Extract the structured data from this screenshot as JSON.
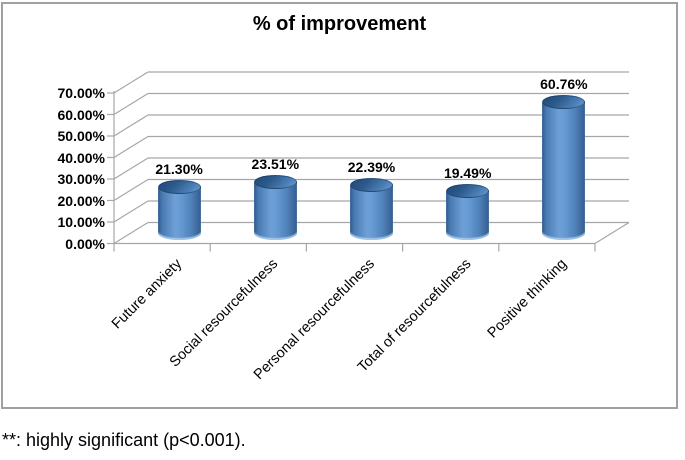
{
  "figure": {
    "note": "**: highly significant (p<0.001)."
  },
  "chart_data": {
    "type": "bar",
    "subtype": "3d-cylinder",
    "title": "% of improvement",
    "categories": [
      "Future anxiety",
      "Social resourcefulness",
      "Personal resourcefulness",
      "Total of resourcefulness",
      "Positive thinking"
    ],
    "values": [
      21.3,
      23.51,
      22.39,
      19.49,
      60.76
    ],
    "data_labels": [
      "21.30%",
      "23.51%",
      "22.39%",
      "19.49%",
      "60.76%"
    ],
    "xlabel": "",
    "ylabel": "",
    "y_axis": {
      "min": 0,
      "max": 70,
      "step": 10,
      "tick_labels": [
        "0.00%",
        "10.00%",
        "20.00%",
        "30.00%",
        "40.00%",
        "50.00%",
        "60.00%",
        "70.00%"
      ]
    },
    "legend": "none",
    "grid": true,
    "colors": {
      "bar_light": "#6fa0d8",
      "bar_dark": "#2f5a8c",
      "bar_top_dark": "#1f4a78",
      "bar_top_light": "#6b9cd4",
      "gridline": "#a6a6a6",
      "axis": "#a6a6a6",
      "box_border": "#a0a0a0",
      "text": "#000000"
    }
  }
}
